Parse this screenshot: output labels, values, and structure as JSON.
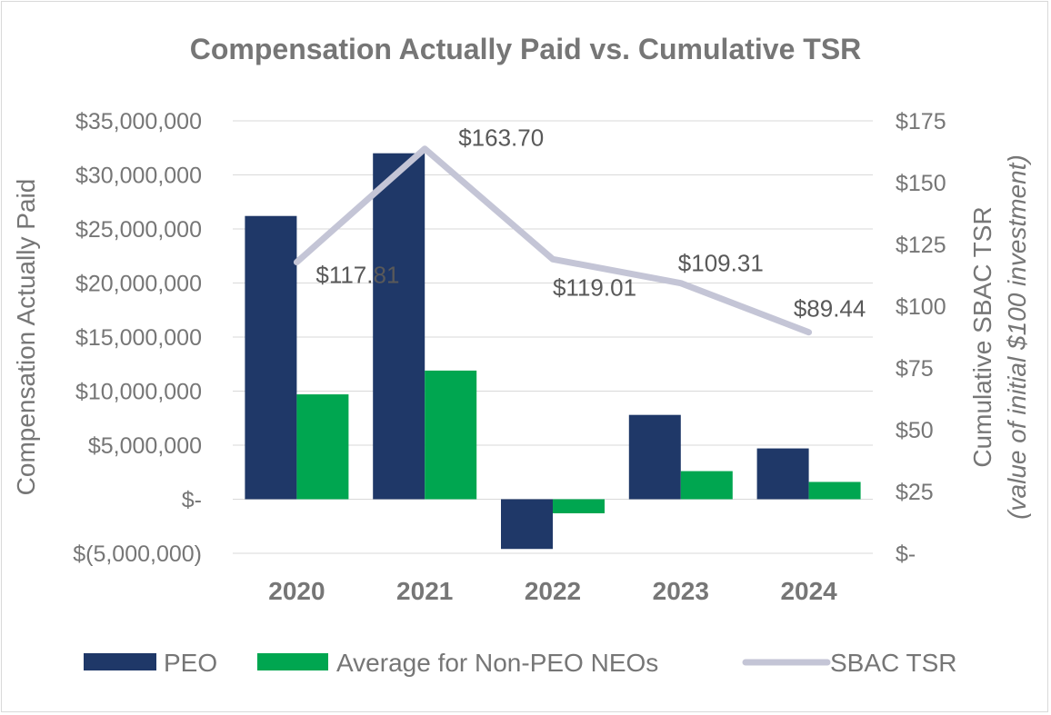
{
  "chart_data": {
    "type": "bar",
    "title": "Compensation Actually Paid vs. Cumulative TSR",
    "categories": [
      "2020",
      "2021",
      "2022",
      "2023",
      "2024"
    ],
    "y_left": {
      "label": "Compensation Actually Paid",
      "min": -5000000,
      "max": 35000000,
      "step": 5000000,
      "tick_labels": [
        "$(5,000,000)",
        "$-",
        "$5,000,000",
        "$10,000,000",
        "$15,000,000",
        "$20,000,000",
        "$25,000,000",
        "$30,000,000",
        "$35,000,000"
      ]
    },
    "y_right": {
      "label": "Cumulative SBAC TSR",
      "label_sub": "(value of initial $100 investment)",
      "min": 0,
      "max": 175,
      "step": 25,
      "tick_labels": [
        "$-",
        "$25",
        "$50",
        "$75",
        "$100",
        "$125",
        "$150",
        "$175"
      ]
    },
    "series": [
      {
        "name": "PEO",
        "type": "bar",
        "axis": "left",
        "color": "#1f3868",
        "values": [
          26200000,
          32000000,
          -4600000,
          7800000,
          4700000
        ]
      },
      {
        "name": "Average for Non-PEO NEOs",
        "type": "bar",
        "axis": "left",
        "color": "#00a650",
        "values": [
          9700000,
          11900000,
          -1300000,
          2600000,
          1600000
        ]
      },
      {
        "name": "SBAC TSR",
        "type": "line",
        "axis": "right",
        "color": "#c4c5d6",
        "values": [
          117.81,
          163.7,
          119.01,
          109.31,
          89.44
        ],
        "data_labels": [
          "$117.81",
          "$163.70",
          "$119.01",
          "$109.31",
          "$89.44"
        ]
      }
    ],
    "grid": true,
    "legend_position": "bottom"
  }
}
